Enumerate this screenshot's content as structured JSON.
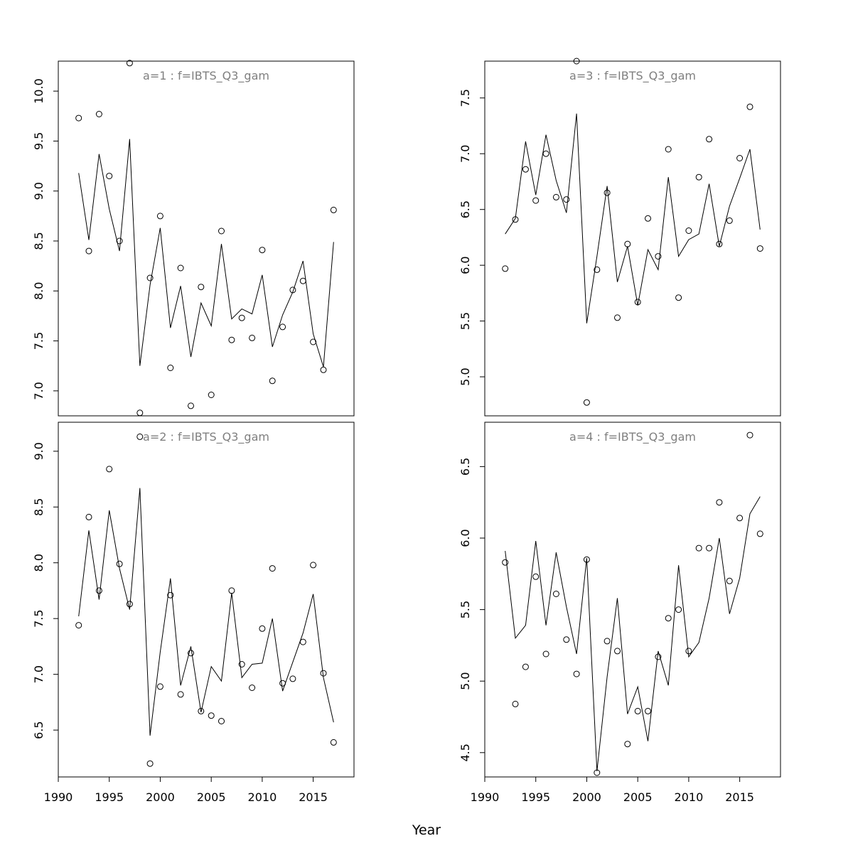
{
  "figure": {
    "xlabel": "Year"
  },
  "chart_data": [
    {
      "type": "scatter",
      "title": "a=1  :  f=IBTS_Q3_gam",
      "xlabel": "Year",
      "ylabel": "",
      "xlim": [
        1990,
        2019
      ],
      "ylim": [
        6.75,
        10.3
      ],
      "x_ticks": [
        1990,
        1995,
        2000,
        2005,
        2010,
        2015
      ],
      "y_ticks": [
        7.0,
        7.5,
        8.0,
        8.5,
        9.0,
        9.5,
        10.0
      ],
      "y_tick_labels": [
        "7.0",
        "7.5",
        "8.0",
        "8.5",
        "9.0",
        "9.5",
        "10.0"
      ],
      "x": [
        1992,
        1993,
        1994,
        1995,
        1996,
        1997,
        1998,
        1999,
        2000,
        2001,
        2002,
        2003,
        2004,
        2005,
        2006,
        2007,
        2008,
        2009,
        2010,
        2011,
        2012,
        2013,
        2014,
        2015,
        2016,
        2017
      ],
      "series": [
        {
          "type": "points",
          "values": [
            9.73,
            8.4,
            9.77,
            9.15,
            8.5,
            10.28,
            6.78,
            8.13,
            8.75,
            7.23,
            8.23,
            6.85,
            8.04,
            6.96,
            8.6,
            7.51,
            7.73,
            7.53,
            8.41,
            7.1,
            7.64,
            8.01,
            8.1,
            7.49,
            7.21,
            8.81
          ]
        },
        {
          "type": "line",
          "values": [
            9.18,
            8.51,
            9.37,
            8.82,
            8.4,
            9.52,
            7.25,
            8.06,
            8.63,
            7.63,
            8.05,
            7.34,
            7.88,
            7.65,
            8.47,
            7.72,
            7.82,
            7.77,
            8.16,
            7.44,
            7.76,
            7.99,
            8.3,
            7.57,
            7.24,
            8.49
          ]
        }
      ]
    },
    {
      "type": "scatter",
      "title": "a=2  :  f=IBTS_Q3_gam",
      "xlabel": "Year",
      "ylabel": "",
      "xlim": [
        1990,
        2019
      ],
      "ylim": [
        6.08,
        9.26
      ],
      "x_ticks": [
        1990,
        1995,
        2000,
        2005,
        2010,
        2015
      ],
      "y_ticks": [
        6.5,
        7.0,
        7.5,
        8.0,
        8.5,
        9.0
      ],
      "y_tick_labels": [
        "6.5",
        "7.0",
        "7.5",
        "8.0",
        "8.5",
        "9.0"
      ],
      "x": [
        1992,
        1993,
        1994,
        1995,
        1996,
        1997,
        1998,
        1999,
        2000,
        2001,
        2002,
        2003,
        2004,
        2005,
        2006,
        2007,
        2008,
        2009,
        2010,
        2011,
        2012,
        2013,
        2014,
        2015,
        2016,
        2017
      ],
      "series": [
        {
          "type": "points",
          "values": [
            7.44,
            8.41,
            7.75,
            8.84,
            7.99,
            7.63,
            9.13,
            6.2,
            6.89,
            7.71,
            6.82,
            7.19,
            6.67,
            6.63,
            6.58,
            7.75,
            7.09,
            6.88,
            7.41,
            7.95,
            6.92,
            6.96,
            7.29,
            7.98,
            7.01,
            6.39
          ]
        },
        {
          "type": "line",
          "values": [
            7.52,
            8.29,
            7.67,
            8.47,
            7.95,
            7.58,
            8.67,
            6.45,
            7.2,
            7.86,
            6.9,
            7.25,
            6.66,
            7.07,
            6.94,
            7.73,
            6.97,
            7.09,
            7.1,
            7.5,
            6.85,
            7.11,
            7.37,
            7.72,
            6.97,
            6.57
          ]
        }
      ]
    },
    {
      "type": "scatter",
      "title": "a=3  :  f=IBTS_Q3_gam",
      "xlabel": "Year",
      "ylabel": "",
      "xlim": [
        1990,
        2019
      ],
      "ylim": [
        4.65,
        7.83
      ],
      "x_ticks": [
        1990,
        1995,
        2000,
        2005,
        2010,
        2015
      ],
      "y_ticks": [
        5.0,
        5.5,
        6.0,
        6.5,
        7.0,
        7.5
      ],
      "y_tick_labels": [
        "5.0",
        "5.5",
        "6.0",
        "6.5",
        "7.0",
        "7.5"
      ],
      "x": [
        1992,
        1993,
        1994,
        1995,
        1996,
        1997,
        1998,
        1999,
        2000,
        2001,
        2002,
        2003,
        2004,
        2005,
        2006,
        2007,
        2008,
        2009,
        2010,
        2011,
        2012,
        2013,
        2014,
        2015,
        2016,
        2017
      ],
      "series": [
        {
          "type": "points",
          "values": [
            5.97,
            6.41,
            6.86,
            6.58,
            7.0,
            6.61,
            6.59,
            7.83,
            4.77,
            5.96,
            6.65,
            5.53,
            6.19,
            5.67,
            6.42,
            6.08,
            7.04,
            5.71,
            6.31,
            6.79,
            7.13,
            6.19,
            6.4,
            6.96,
            7.42,
            6.15
          ]
        },
        {
          "type": "line",
          "values": [
            6.28,
            6.42,
            7.11,
            6.63,
            7.17,
            6.76,
            6.47,
            7.36,
            5.48,
            6.08,
            6.71,
            5.85,
            6.17,
            5.64,
            6.14,
            5.96,
            6.79,
            6.08,
            6.23,
            6.28,
            6.73,
            6.17,
            6.53,
            6.78,
            7.04,
            6.32
          ]
        }
      ]
    },
    {
      "type": "scatter",
      "title": "a=4  :  f=IBTS_Q3_gam",
      "xlabel": "Year",
      "ylabel": "",
      "xlim": [
        1990,
        2019
      ],
      "ylim": [
        4.33,
        6.81
      ],
      "x_ticks": [
        1990,
        1995,
        2000,
        2005,
        2010,
        2015
      ],
      "y_ticks": [
        4.5,
        5.0,
        5.5,
        6.0,
        6.5
      ],
      "y_tick_labels": [
        "4.5",
        "5.0",
        "5.5",
        "6.0",
        "6.5"
      ],
      "x": [
        1992,
        1993,
        1994,
        1995,
        1996,
        1997,
        1998,
        1999,
        2000,
        2001,
        2002,
        2003,
        2004,
        2005,
        2006,
        2007,
        2008,
        2009,
        2010,
        2011,
        2012,
        2013,
        2014,
        2015,
        2016,
        2017
      ],
      "series": [
        {
          "type": "points",
          "values": [
            5.83,
            4.84,
            5.1,
            5.73,
            5.19,
            5.61,
            5.29,
            5.05,
            5.85,
            4.36,
            5.28,
            5.21,
            4.56,
            4.79,
            4.79,
            5.17,
            5.44,
            5.5,
            5.21,
            5.93,
            5.93,
            6.25,
            5.7,
            6.14,
            6.72,
            6.03
          ]
        },
        {
          "type": "line",
          "values": [
            5.91,
            5.3,
            5.39,
            5.98,
            5.39,
            5.9,
            5.52,
            5.19,
            5.86,
            4.37,
            5.03,
            5.58,
            4.77,
            4.96,
            4.58,
            5.21,
            4.97,
            5.81,
            5.17,
            5.27,
            5.58,
            6.0,
            5.47,
            5.72,
            6.17,
            6.29
          ]
        }
      ]
    }
  ]
}
